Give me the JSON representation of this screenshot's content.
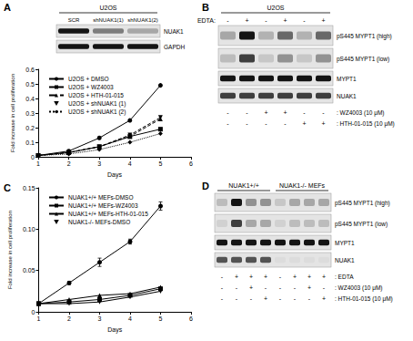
{
  "panel_labels": [
    "A",
    "B",
    "C",
    "D"
  ],
  "blots": [
    {
      "headers": [
        {
          "text": "U2OS",
          "span": 3
        }
      ],
      "top_rows": [],
      "lane_labels": [
        "SCR",
        "shNUAK1(1)",
        "shNUAK1(2)"
      ],
      "bands": [
        {
          "label": "NUAK1",
          "intensity": [
            1.0,
            0.5,
            0.3
          ]
        },
        {
          "label": "GAPDH",
          "intensity": [
            1.0,
            1.0,
            1.0
          ]
        }
      ],
      "bottom_rows": []
    },
    {
      "headers": [
        {
          "text": "U2OS",
          "span": 6
        }
      ],
      "top_rows": [
        {
          "label": "EDTA:",
          "values": [
            "-",
            "+",
            "-",
            "+",
            "-",
            "+"
          ]
        }
      ],
      "lane_labels": [],
      "bands": [
        {
          "label": "pS445 MYPT1 (high)",
          "intensity": [
            0.3,
            1.0,
            0.25,
            0.6,
            0.25,
            0.6
          ]
        },
        {
          "label": "pS445 MYPT1 (low)",
          "intensity": [
            0.2,
            0.8,
            0.15,
            0.4,
            0.15,
            0.4
          ]
        },
        {
          "label": "MYPT1",
          "intensity": [
            1.0,
            1.0,
            1.0,
            1.0,
            1.0,
            1.0
          ]
        },
        {
          "label": "NUAK1",
          "intensity": [
            0.8,
            0.8,
            0.8,
            0.8,
            0.8,
            0.8
          ]
        }
      ],
      "bottom_rows": [
        {
          "label": ": WZ4003 (10 μM)",
          "values": [
            "-",
            "-",
            "+",
            "+",
            "-",
            "-"
          ]
        },
        {
          "label": ": HTH-01-015 (10 μM)",
          "values": [
            "-",
            "-",
            "-",
            "-",
            "+",
            "+"
          ]
        }
      ]
    },
    {
      "headers": [
        {
          "text": "NUAK1+/+",
          "span": 4
        },
        {
          "text": "NUAK1-/- MEFs",
          "span": 4
        }
      ],
      "top_rows": [],
      "lane_labels": [],
      "bands": [
        {
          "label": "pS445 MYPT1 (high)",
          "intensity": [
            0.2,
            1.0,
            0.4,
            0.4,
            0.15,
            0.3,
            0.3,
            0.3
          ]
        },
        {
          "label": "pS445 MYPT1 (low)",
          "intensity": [
            0.1,
            0.8,
            0.3,
            0.3,
            0.1,
            0.2,
            0.2,
            0.2
          ]
        },
        {
          "label": "MYPT1",
          "intensity": [
            1.0,
            1.0,
            1.0,
            1.0,
            1.0,
            1.0,
            1.0,
            1.0
          ]
        },
        {
          "label": "NUAK1",
          "intensity": [
            0.7,
            0.7,
            0.7,
            0.7,
            0.05,
            0.05,
            0.05,
            0.05
          ]
        }
      ],
      "bottom_rows": [
        {
          "label": ": EDTA",
          "values": [
            "-",
            "+",
            "+",
            "+",
            "-",
            "+",
            "+",
            "+"
          ]
        },
        {
          "label": ": WZ4003 (10 μM)",
          "values": [
            "-",
            "-",
            "+",
            "-",
            "-",
            "-",
            "+",
            "-"
          ]
        },
        {
          "label": ": HTH-01-015 (10 μM)",
          "values": [
            "-",
            "-",
            "-",
            "+",
            "-",
            "-",
            "-",
            "+"
          ]
        }
      ]
    }
  ],
  "chart_data": [
    {
      "type": "line",
      "xlabel": "Days",
      "ylabel": "Fold increase in cell proliferation",
      "x": [
        1,
        2,
        3,
        4,
        5
      ],
      "xlim": [
        1,
        6
      ],
      "xticks": [
        1,
        2,
        3,
        4,
        5,
        6
      ],
      "ylim": [
        0,
        0.6
      ],
      "yticks": [
        0,
        0.1,
        0.2,
        0.3,
        0.4,
        0.5,
        0.6
      ],
      "grid": false,
      "legend": "upper left",
      "series": [
        {
          "name": "U2OS + DMSO",
          "color": "#000000",
          "marker": "circle",
          "line_style": "solid",
          "values": [
            0.01,
            0.04,
            0.13,
            0.25,
            0.49
          ]
        },
        {
          "name": "U2OS + WZ4003",
          "color": "#000000",
          "marker": "square",
          "line_style": "solid",
          "values": [
            0.01,
            0.03,
            0.07,
            0.14,
            0.19
          ]
        },
        {
          "name": "U2OS + HTH-01-015",
          "color": "#000000",
          "marker": "triangle",
          "line_style": "dashed",
          "values": [
            0.01,
            0.03,
            0.07,
            0.14,
            0.26
          ]
        },
        {
          "name": "U2OS + shNUAK1 (1)",
          "color": "#000000",
          "marker": "triangle_down",
          "line_style": "dashed",
          "values": [
            0.01,
            0.03,
            0.07,
            0.15,
            0.27
          ]
        },
        {
          "name": "U2OS + shNUAK1 (2)",
          "color": "#000000",
          "marker": "diamond",
          "line_style": "dotted",
          "values": [
            0.01,
            0.02,
            0.05,
            0.1,
            0.16
          ]
        }
      ]
    },
    {
      "type": "line",
      "xlabel": "Days",
      "ylabel": "Fold increase in cell proliferation",
      "x": [
        1,
        2,
        3,
        4,
        5
      ],
      "xlim": [
        1,
        6
      ],
      "xticks": [
        1,
        2,
        3,
        4,
        5,
        6
      ],
      "ylim": [
        0,
        0.15
      ],
      "yticks": [
        0,
        0.05,
        {
          "value": 0.1,
          "label": "0.10"
        },
        0.15
      ],
      "grid": false,
      "legend": "upper left",
      "series": [
        {
          "name": "NUAK1+/+ MEFs-DMSO",
          "color": "#000000",
          "marker": "circle",
          "line_style": "solid",
          "values": [
            0.01,
            0.035,
            0.06,
            0.085,
            0.128
          ],
          "errors": [
            0.001,
            0.002,
            0.005,
            0.003,
            0.005
          ]
        },
        {
          "name": "NUAK1+/+ MEFs-WZ4003",
          "color": "#000000",
          "marker": "square",
          "line_style": "solid",
          "values": [
            0.01,
            0.012,
            0.015,
            0.02,
            0.028
          ]
        },
        {
          "name": "NUAK1+/+ MEFs-HTH-01-015",
          "color": "#000000",
          "marker": "triangle",
          "line_style": "solid",
          "values": [
            0.01,
            0.015,
            0.02,
            0.022,
            0.03
          ]
        },
        {
          "name": "NUAK1-/- MEFs-DMSO",
          "color": "#000000",
          "marker": "triangle_down",
          "line_style": "solid",
          "values": [
            0.01,
            0.01,
            0.012,
            0.018,
            0.025
          ]
        }
      ]
    }
  ]
}
